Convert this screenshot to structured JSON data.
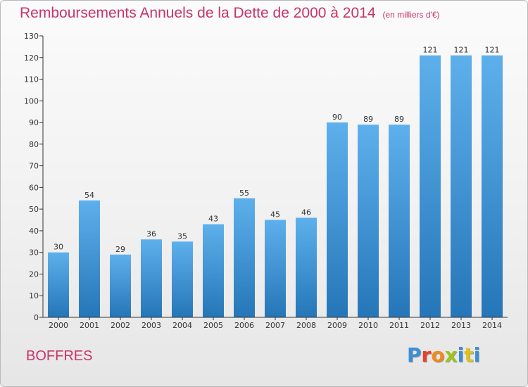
{
  "title": "Remboursements Annuels de la Dette de 2000 à 2014",
  "unit": "(en milliers d'€)",
  "commune": "BOFFRES",
  "logo": {
    "text": "Proxiti",
    "colors": [
      "#3a8fd6",
      "#e8402a",
      "#f08a1c",
      "#9dc41c",
      "#3a8fd6",
      "#e0c21a",
      "#3a8fd6"
    ]
  },
  "colors": {
    "title": "#c8336a",
    "bar_top": "#5eb0ec",
    "bar_bottom": "#2576b8",
    "axis": "#333333"
  },
  "chart_data": {
    "type": "bar",
    "categories": [
      "2000",
      "2001",
      "2002",
      "2003",
      "2004",
      "2005",
      "2006",
      "2007",
      "2008",
      "2009",
      "2010",
      "2011",
      "2012",
      "2013",
      "2014"
    ],
    "values": [
      30,
      54,
      29,
      36,
      35,
      43,
      55,
      45,
      46,
      90,
      89,
      89,
      121,
      121,
      121
    ],
    "ylim": [
      0,
      130
    ],
    "yticks": [
      0,
      10,
      20,
      30,
      40,
      50,
      60,
      70,
      80,
      90,
      100,
      110,
      120,
      130
    ],
    "grid": false
  }
}
